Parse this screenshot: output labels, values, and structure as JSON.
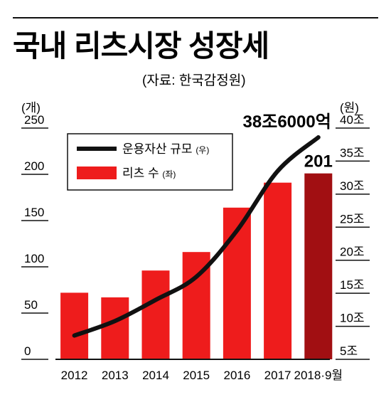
{
  "header": {
    "title": "국내 리츠시장 성장세",
    "source": "(자료: 한국감정원)"
  },
  "chart_data": {
    "type": "bar+line",
    "categories": [
      "2012",
      "2013",
      "2014",
      "2015",
      "2016",
      "2017",
      "2018·9월"
    ],
    "left_axis": {
      "unit_label": "(개)",
      "ticks": [
        "0",
        "50",
        "100",
        "150",
        "200",
        "250"
      ],
      "range": [
        0,
        250
      ]
    },
    "right_axis": {
      "unit_label": "(원)",
      "ticks": [
        "5조",
        "10조",
        "15조",
        "20조",
        "25조",
        "30조",
        "35조",
        "40조"
      ],
      "range": [
        5,
        40
      ]
    },
    "series": [
      {
        "name": "리츠 수",
        "name_note": "(좌)",
        "axis": "left",
        "kind": "bar",
        "values": [
          72,
          67,
          96,
          116,
          164,
          191,
          201
        ],
        "colors": [
          "#ee1c1c",
          "#ee1c1c",
          "#ee1c1c",
          "#ee1c1c",
          "#ee1c1c",
          "#ee1c1c",
          "#a10f12"
        ]
      },
      {
        "name": "운용자산 규모",
        "name_note": "(우)",
        "axis": "right",
        "kind": "line",
        "values": [
          8.6,
          10.8,
          14.0,
          17.5,
          24.5,
          33.5,
          38.6
        ],
        "color": "#111111"
      }
    ],
    "annotations": [
      {
        "text": "38조6000억",
        "target": "line-last-point"
      },
      {
        "text": "201",
        "target": "last-bar"
      }
    ],
    "grid": false,
    "legend": "top-left"
  }
}
